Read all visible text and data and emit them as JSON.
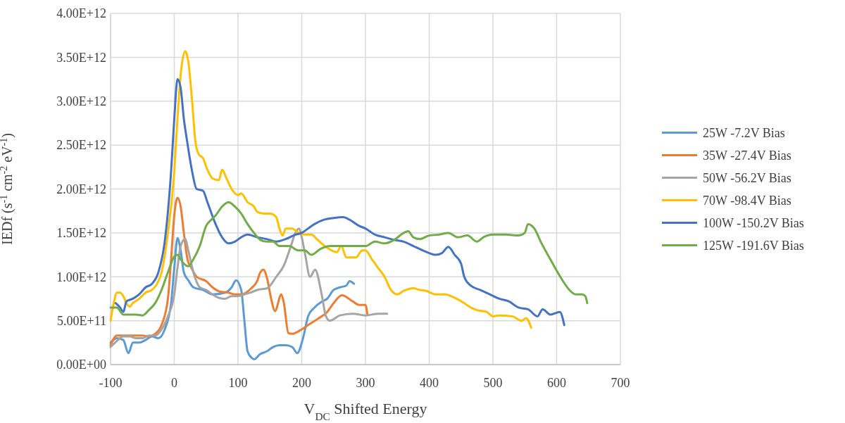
{
  "chart_data": {
    "type": "line",
    "xlabel": "V$_{DC}$ Shifted Energy",
    "ylabel": "IEDf (s$^{-1}$ cm$^{-2}$ eV$^{-1}$)",
    "xlim": [
      -100,
      700
    ],
    "xticks": [
      -100,
      0,
      100,
      200,
      300,
      400,
      500,
      600,
      700
    ],
    "ylim": [
      0,
      4000000000000.0
    ],
    "yticks": [
      {
        "value": 0,
        "label": "0.00E+00"
      },
      {
        "value": 500000000000.0,
        "label": "5.00E+11"
      },
      {
        "value": 1000000000000.0,
        "label": "1.00E+12"
      },
      {
        "value": 1500000000000.0,
        "label": "1.50E+12"
      },
      {
        "value": 2000000000000.0,
        "label": "2.00E+12"
      },
      {
        "value": 2500000000000.0,
        "label": "2.50E+12"
      },
      {
        "value": 3000000000000.0,
        "label": "3.00E+12"
      },
      {
        "value": 3500000000000.0,
        "label": "3.50E+12"
      },
      {
        "value": 4000000000000.0,
        "label": "4.00E+12"
      }
    ],
    "grid": true,
    "legend": "right",
    "marker": "none",
    "line_style": "solid",
    "series": [
      {
        "name": "25W -7.2V Bias",
        "color": "#5b9bd5",
        "x": [
          -100,
          -90,
          -80,
          -72,
          -65,
          -55,
          -45,
          -35,
          -25,
          -15,
          -5,
          0,
          5,
          10,
          15,
          22,
          30,
          45,
          60,
          80,
          90,
          97,
          105,
          110,
          115,
          121,
          125,
          135,
          145,
          155,
          165,
          175,
          185,
          193,
          202,
          210,
          220,
          232,
          240,
          250,
          260,
          270,
          275,
          282
        ],
        "values": [
          250000000000.0,
          300000000000.0,
          280000000000.0,
          130000000000.0,
          250000000000.0,
          250000000000.0,
          280000000000.0,
          320000000000.0,
          300000000000.0,
          400000000000.0,
          700000000000.0,
          1100000000000.0,
          1440000000000.0,
          1300000000000.0,
          1050000000000.0,
          960000000000.0,
          880000000000.0,
          850000000000.0,
          800000000000.0,
          820000000000.0,
          880000000000.0,
          960000000000.0,
          850000000000.0,
          500000000000.0,
          150000000000.0,
          80000000000.0,
          60000000000.0,
          120000000000.0,
          150000000000.0,
          200000000000.0,
          220000000000.0,
          220000000000.0,
          200000000000.0,
          130000000000.0,
          300000000000.0,
          550000000000.0,
          650000000000.0,
          720000000000.0,
          750000000000.0,
          850000000000.0,
          880000000000.0,
          900000000000.0,
          950000000000.0,
          920000000000.0
        ]
      },
      {
        "name": "35W -27.4V Bias",
        "color": "#ed7d31",
        "x": [
          -100,
          -90,
          -80,
          -70,
          -50,
          -40,
          -30,
          -20,
          -10,
          -5,
          0,
          5,
          10,
          15,
          21,
          27,
          35,
          50,
          60,
          72,
          85,
          95,
          105,
          121,
          130,
          135,
          140,
          146,
          152,
          158,
          168,
          172,
          179,
          185,
          195,
          204,
          210,
          225,
          240,
          250,
          263,
          280,
          290,
          300,
          303
        ],
        "values": [
          220000000000.0,
          330000000000.0,
          330000000000.0,
          330000000000.0,
          330000000000.0,
          320000000000.0,
          350000000000.0,
          450000000000.0,
          750000000000.0,
          1200000000000.0,
          1700000000000.0,
          1900000000000.0,
          1800000000000.0,
          1500000000000.0,
          1190000000000.0,
          1100000000000.0,
          1000000000000.0,
          950000000000.0,
          880000000000.0,
          830000000000.0,
          820000000000.0,
          800000000000.0,
          800000000000.0,
          870000000000.0,
          950000000000.0,
          1050000000000.0,
          1080000000000.0,
          970000000000.0,
          750000000000.0,
          610000000000.0,
          800000000000.0,
          700000000000.0,
          360000000000.0,
          350000000000.0,
          380000000000.0,
          420000000000.0,
          450000000000.0,
          520000000000.0,
          600000000000.0,
          700000000000.0,
          790000000000.0,
          720000000000.0,
          680000000000.0,
          680000000000.0,
          570000000000.0
        ]
      },
      {
        "name": "50W -56.2V Bias",
        "color": "#a5a5a5",
        "x": [
          -100,
          -90,
          -80,
          -70,
          -60,
          -50,
          -40,
          -30,
          -20,
          -10,
          0,
          5,
          10,
          17,
          22,
          30,
          40,
          50,
          60,
          70,
          80,
          90,
          100,
          110,
          120,
          130,
          146,
          160,
          172,
          183,
          190,
          196,
          200,
          205,
          213,
          221,
          231,
          238,
          244,
          260,
          280,
          300,
          320,
          334
        ],
        "values": [
          200000000000.0,
          270000000000.0,
          320000000000.0,
          320000000000.0,
          300000000000.0,
          300000000000.0,
          330000000000.0,
          330000000000.0,
          400000000000.0,
          550000000000.0,
          800000000000.0,
          1100000000000.0,
          1350000000000.0,
          1430000000000.0,
          1300000000000.0,
          1050000000000.0,
          880000000000.0,
          850000000000.0,
          800000000000.0,
          760000000000.0,
          750000000000.0,
          780000000000.0,
          780000000000.0,
          800000000000.0,
          820000000000.0,
          850000000000.0,
          870000000000.0,
          1000000000000.0,
          1130000000000.0,
          1350000000000.0,
          1500000000000.0,
          1550000000000.0,
          1450000000000.0,
          1270000000000.0,
          1000000000000.0,
          1080000000000.0,
          810000000000.0,
          550000000000.0,
          500000000000.0,
          560000000000.0,
          580000000000.0,
          560000000000.0,
          580000000000.0,
          580000000000.0
        ]
      },
      {
        "name": "70W -98.4V Bias",
        "color": "#ffc000",
        "x": [
          -100,
          -95,
          -90,
          -85,
          -80,
          -75,
          -70,
          -65,
          -55,
          -45,
          -35,
          -25,
          -20,
          -10,
          0,
          5,
          10,
          17,
          22,
          28,
          33,
          38,
          45,
          52,
          60,
          70,
          75,
          82,
          90,
          100,
          105,
          115,
          125,
          130,
          140,
          150,
          160,
          165,
          170,
          175,
          185,
          195,
          205,
          215,
          225,
          240,
          255,
          262,
          270,
          285,
          295,
          300,
          310,
          320,
          330,
          340,
          350,
          360,
          375,
          385,
          395,
          410,
          425,
          440,
          455,
          465,
          475,
          490,
          500,
          510,
          530,
          545,
          552,
          560
        ],
        "values": [
          500000000000.0,
          700000000000.0,
          820000000000.0,
          820000000000.0,
          780000000000.0,
          700000000000.0,
          660000000000.0,
          700000000000.0,
          750000000000.0,
          820000000000.0,
          850000000000.0,
          950000000000.0,
          1050000000000.0,
          1500000000000.0,
          2200000000000.0,
          2800000000000.0,
          3300000000000.0,
          3570000000000.0,
          3450000000000.0,
          3000000000000.0,
          2550000000000.0,
          2400000000000.0,
          2350000000000.0,
          2220000000000.0,
          2120000000000.0,
          2100000000000.0,
          2220000000000.0,
          2120000000000.0,
          2000000000000.0,
          1930000000000.0,
          1950000000000.0,
          1850000000000.0,
          1800000000000.0,
          1740000000000.0,
          1720000000000.0,
          1720000000000.0,
          1680000000000.0,
          1550000000000.0,
          1470000000000.0,
          1550000000000.0,
          1550000000000.0,
          1500000000000.0,
          1480000000000.0,
          1480000000000.0,
          1420000000000.0,
          1330000000000.0,
          1280000000000.0,
          1350000000000.0,
          1220000000000.0,
          1220000000000.0,
          1300000000000.0,
          1300000000000.0,
          1200000000000.0,
          1100000000000.0,
          1000000000000.0,
          850000000000.0,
          800000000000.0,
          840000000000.0,
          870000000000.0,
          850000000000.0,
          840000000000.0,
          800000000000.0,
          800000000000.0,
          760000000000.0,
          700000000000.0,
          650000000000.0,
          620000000000.0,
          600000000000.0,
          550000000000.0,
          560000000000.0,
          550000000000.0,
          500000000000.0,
          530000000000.0,
          420000000000.0
        ]
      },
      {
        "name": "100W -150.2V Bias",
        "color": "#4472c4",
        "x": [
          -92,
          -85,
          -80,
          -75,
          -65,
          -55,
          -45,
          -35,
          -25,
          -15,
          -5,
          0,
          5,
          10,
          15,
          20,
          28,
          35,
          45,
          52,
          62,
          75,
          85,
          95,
          105,
          115,
          130,
          145,
          160,
          175,
          190,
          200,
          210,
          220,
          235,
          250,
          265,
          275,
          290,
          300,
          315,
          330,
          345,
          360,
          375,
          390,
          400,
          410,
          420,
          430,
          440,
          450,
          455,
          465,
          480,
          495,
          510,
          525,
          540,
          555,
          570,
          578,
          590,
          605,
          612
        ],
        "values": [
          700000000000.0,
          650000000000.0,
          600000000000.0,
          720000000000.0,
          750000000000.0,
          800000000000.0,
          880000000000.0,
          920000000000.0,
          1050000000000.0,
          1400000000000.0,
          2200000000000.0,
          2800000000000.0,
          3250000000000.0,
          3150000000000.0,
          2800000000000.0,
          2550000000000.0,
          2200000000000.0,
          2000000000000.0,
          1980000000000.0,
          1850000000000.0,
          1650000000000.0,
          1450000000000.0,
          1380000000000.0,
          1400000000000.0,
          1450000000000.0,
          1480000000000.0,
          1450000000000.0,
          1430000000000.0,
          1400000000000.0,
          1430000000000.0,
          1480000000000.0,
          1500000000000.0,
          1550000000000.0,
          1600000000000.0,
          1650000000000.0,
          1670000000000.0,
          1680000000000.0,
          1650000000000.0,
          1580000000000.0,
          1550000000000.0,
          1480000000000.0,
          1450000000000.0,
          1420000000000.0,
          1400000000000.0,
          1350000000000.0,
          1300000000000.0,
          1270000000000.0,
          1250000000000.0,
          1270000000000.0,
          1340000000000.0,
          1250000000000.0,
          1150000000000.0,
          1000000000000.0,
          900000000000.0,
          850000000000.0,
          800000000000.0,
          750000000000.0,
          720000000000.0,
          650000000000.0,
          630000000000.0,
          550000000000.0,
          630000000000.0,
          570000000000.0,
          600000000000.0,
          450000000000.0
        ]
      },
      {
        "name": "125W -191.6V Bias",
        "color": "#70ad47",
        "x": [
          -100,
          -90,
          -80,
          -70,
          -60,
          -50,
          -40,
          -30,
          -20,
          -10,
          0,
          5,
          10,
          15,
          22,
          30,
          40,
          50,
          58,
          65,
          75,
          85,
          95,
          105,
          115,
          125,
          135,
          145,
          155,
          165,
          180,
          195,
          205,
          215,
          230,
          245,
          260,
          280,
          300,
          315,
          330,
          345,
          360,
          367,
          375,
          385,
          400,
          415,
          430,
          445,
          460,
          475,
          485,
          500,
          520,
          540,
          550,
          555,
          565,
          575,
          590,
          600,
          610,
          620,
          630,
          640,
          645,
          648
        ],
        "values": [
          650000000000.0,
          650000000000.0,
          570000000000.0,
          570000000000.0,
          570000000000.0,
          560000000000.0,
          620000000000.0,
          700000000000.0,
          850000000000.0,
          1050000000000.0,
          1230000000000.0,
          1250000000000.0,
          1200000000000.0,
          1150000000000.0,
          1120000000000.0,
          1200000000000.0,
          1350000000000.0,
          1580000000000.0,
          1650000000000.0,
          1700000000000.0,
          1800000000000.0,
          1850000000000.0,
          1800000000000.0,
          1720000000000.0,
          1600000000000.0,
          1500000000000.0,
          1420000000000.0,
          1400000000000.0,
          1400000000000.0,
          1350000000000.0,
          1350000000000.0,
          1300000000000.0,
          1300000000000.0,
          1250000000000.0,
          1320000000000.0,
          1350000000000.0,
          1350000000000.0,
          1350000000000.0,
          1350000000000.0,
          1400000000000.0,
          1380000000000.0,
          1420000000000.0,
          1500000000000.0,
          1520000000000.0,
          1450000000000.0,
          1430000000000.0,
          1470000000000.0,
          1480000000000.0,
          1500000000000.0,
          1450000000000.0,
          1470000000000.0,
          1400000000000.0,
          1450000000000.0,
          1480000000000.0,
          1480000000000.0,
          1470000000000.0,
          1500000000000.0,
          1600000000000.0,
          1550000000000.0,
          1400000000000.0,
          1200000000000.0,
          1070000000000.0,
          950000000000.0,
          850000000000.0,
          800000000000.0,
          800000000000.0,
          780000000000.0,
          700000000000.0
        ]
      }
    ]
  }
}
